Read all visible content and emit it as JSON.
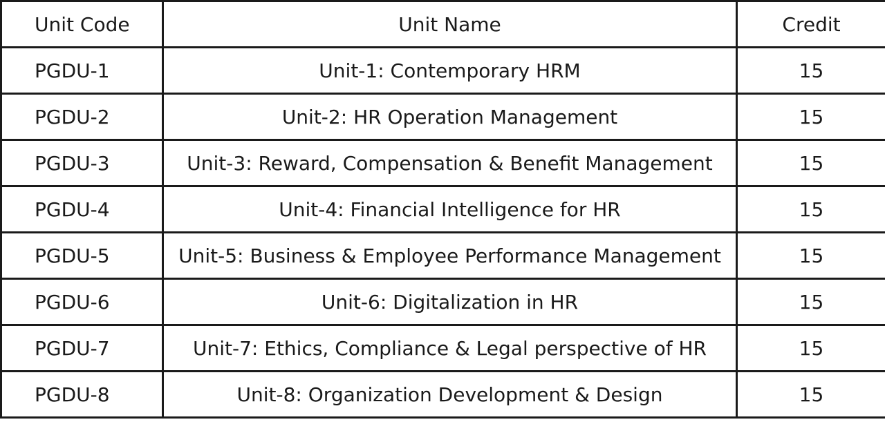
{
  "table": {
    "headers": {
      "code": "Unit Code",
      "name": "Unit Name",
      "credit": "Credit"
    },
    "rows": [
      {
        "code": "PGDU-1",
        "name": "Unit-1: Contemporary HRM",
        "credit": "15"
      },
      {
        "code": "PGDU-2",
        "name": "Unit-2: HR Operation Management",
        "credit": "15"
      },
      {
        "code": "PGDU-3",
        "name": "Unit-3: Reward, Compensation & Benefit Management",
        "credit": "15"
      },
      {
        "code": "PGDU-4",
        "name": "Unit-4: Financial Intelligence for HR",
        "credit": "15"
      },
      {
        "code": "PGDU-5",
        "name": "Unit-5: Business & Employee Performance Management",
        "credit": "15"
      },
      {
        "code": "PGDU-6",
        "name": "Unit-6: Digitalization in HR",
        "credit": "15"
      },
      {
        "code": "PGDU-7",
        "name": "Unit-7: Ethics, Compliance & Legal perspective of HR",
        "credit": "15"
      },
      {
        "code": "PGDU-8",
        "name": "Unit-8: Organization Development & Design",
        "credit": "15"
      }
    ]
  },
  "colors": {
    "border": "#1a1a1a",
    "text": "#1a1a1a",
    "background": "#ffffff"
  }
}
